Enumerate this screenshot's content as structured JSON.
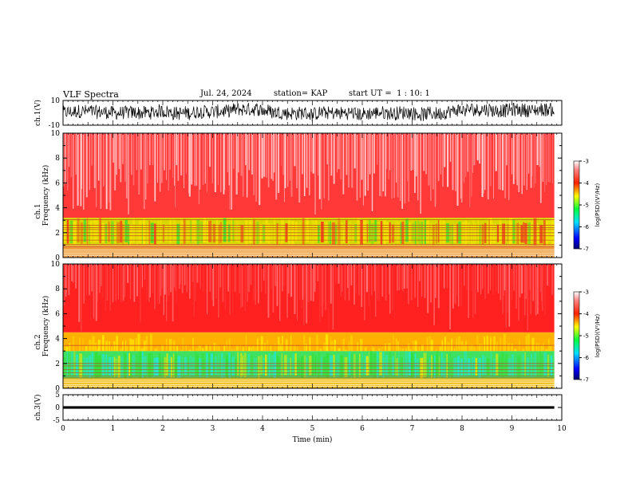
{
  "header": {
    "title": "VLF Spectra",
    "date": "Jul. 24, 2024",
    "station": "station= KAP",
    "start": "start UT =  1 : 10: 1"
  },
  "chart_data": [
    {
      "type": "line",
      "panel": "ch1-waveform",
      "ylabel": "ch.1(V)",
      "ylim": [
        -10,
        10
      ],
      "ytick_labels": [
        "10",
        "-10"
      ],
      "xlim": [
        0,
        10
      ],
      "description_series": "noise signal between about -8 and 8 V",
      "approx_range": [
        -8,
        8
      ]
    },
    {
      "type": "heatmap",
      "panel": "ch1-spectrogram",
      "ylabel_channel": "ch.1",
      "ylabel": "Frequency (kHz)",
      "ylim": [
        0,
        10
      ],
      "ytick_labels": [
        "0",
        "2",
        "4",
        "6",
        "8",
        "10"
      ],
      "xlim": [
        0,
        10
      ],
      "data_end_min": 9.85,
      "bands_kHz": [
        [
          0,
          1.0,
          "mixed"
        ],
        [
          1.0,
          3.2,
          "yellow-green"
        ],
        [
          3.2,
          10,
          "red-white"
        ]
      ],
      "colorbar": {
        "label": "log(PSD)(V²/Hz)",
        "range": [
          -7,
          -3
        ],
        "ticks": [
          "-3",
          "-4",
          "-5",
          "-6",
          "-7"
        ]
      }
    },
    {
      "type": "heatmap",
      "panel": "ch2-spectrogram",
      "ylabel_channel": "ch.2",
      "ylabel": "Frequency (kHz)",
      "ylim": [
        0,
        10
      ],
      "ytick_labels": [
        "0",
        "2",
        "4",
        "6",
        "8",
        "10"
      ],
      "xlim": [
        0,
        10
      ],
      "data_end_min": 9.85,
      "bands_kHz": [
        [
          0,
          0.8,
          "mixed"
        ],
        [
          0.8,
          3.0,
          "green-cyan"
        ],
        [
          3.0,
          4.5,
          "yellow-red"
        ],
        [
          4.5,
          10,
          "red"
        ]
      ],
      "colorbar": {
        "label": "log(PSD)(V²/Hz)",
        "range": [
          -7,
          -3
        ],
        "ticks": [
          "-3",
          "-4",
          "-5",
          "-6",
          "-7"
        ]
      }
    },
    {
      "type": "line",
      "panel": "ch3-waveform",
      "ylabel": "ch.3(V)",
      "ylim": [
        -5,
        5
      ],
      "ytick_labels": [
        "5",
        "0",
        "-5"
      ],
      "xlim": [
        0,
        10
      ],
      "approx_range": [
        -0.5,
        0.5
      ]
    }
  ],
  "xaxis": {
    "label": "Time (min)",
    "ticks": [
      "0",
      "1",
      "2",
      "3",
      "4",
      "5",
      "6",
      "7",
      "8",
      "9",
      "10"
    ]
  },
  "colors": {
    "red": "#ff2020",
    "yellow": "#ffe800",
    "green": "#30e030",
    "cyan": "#20e8e8",
    "axis": "#000000"
  }
}
